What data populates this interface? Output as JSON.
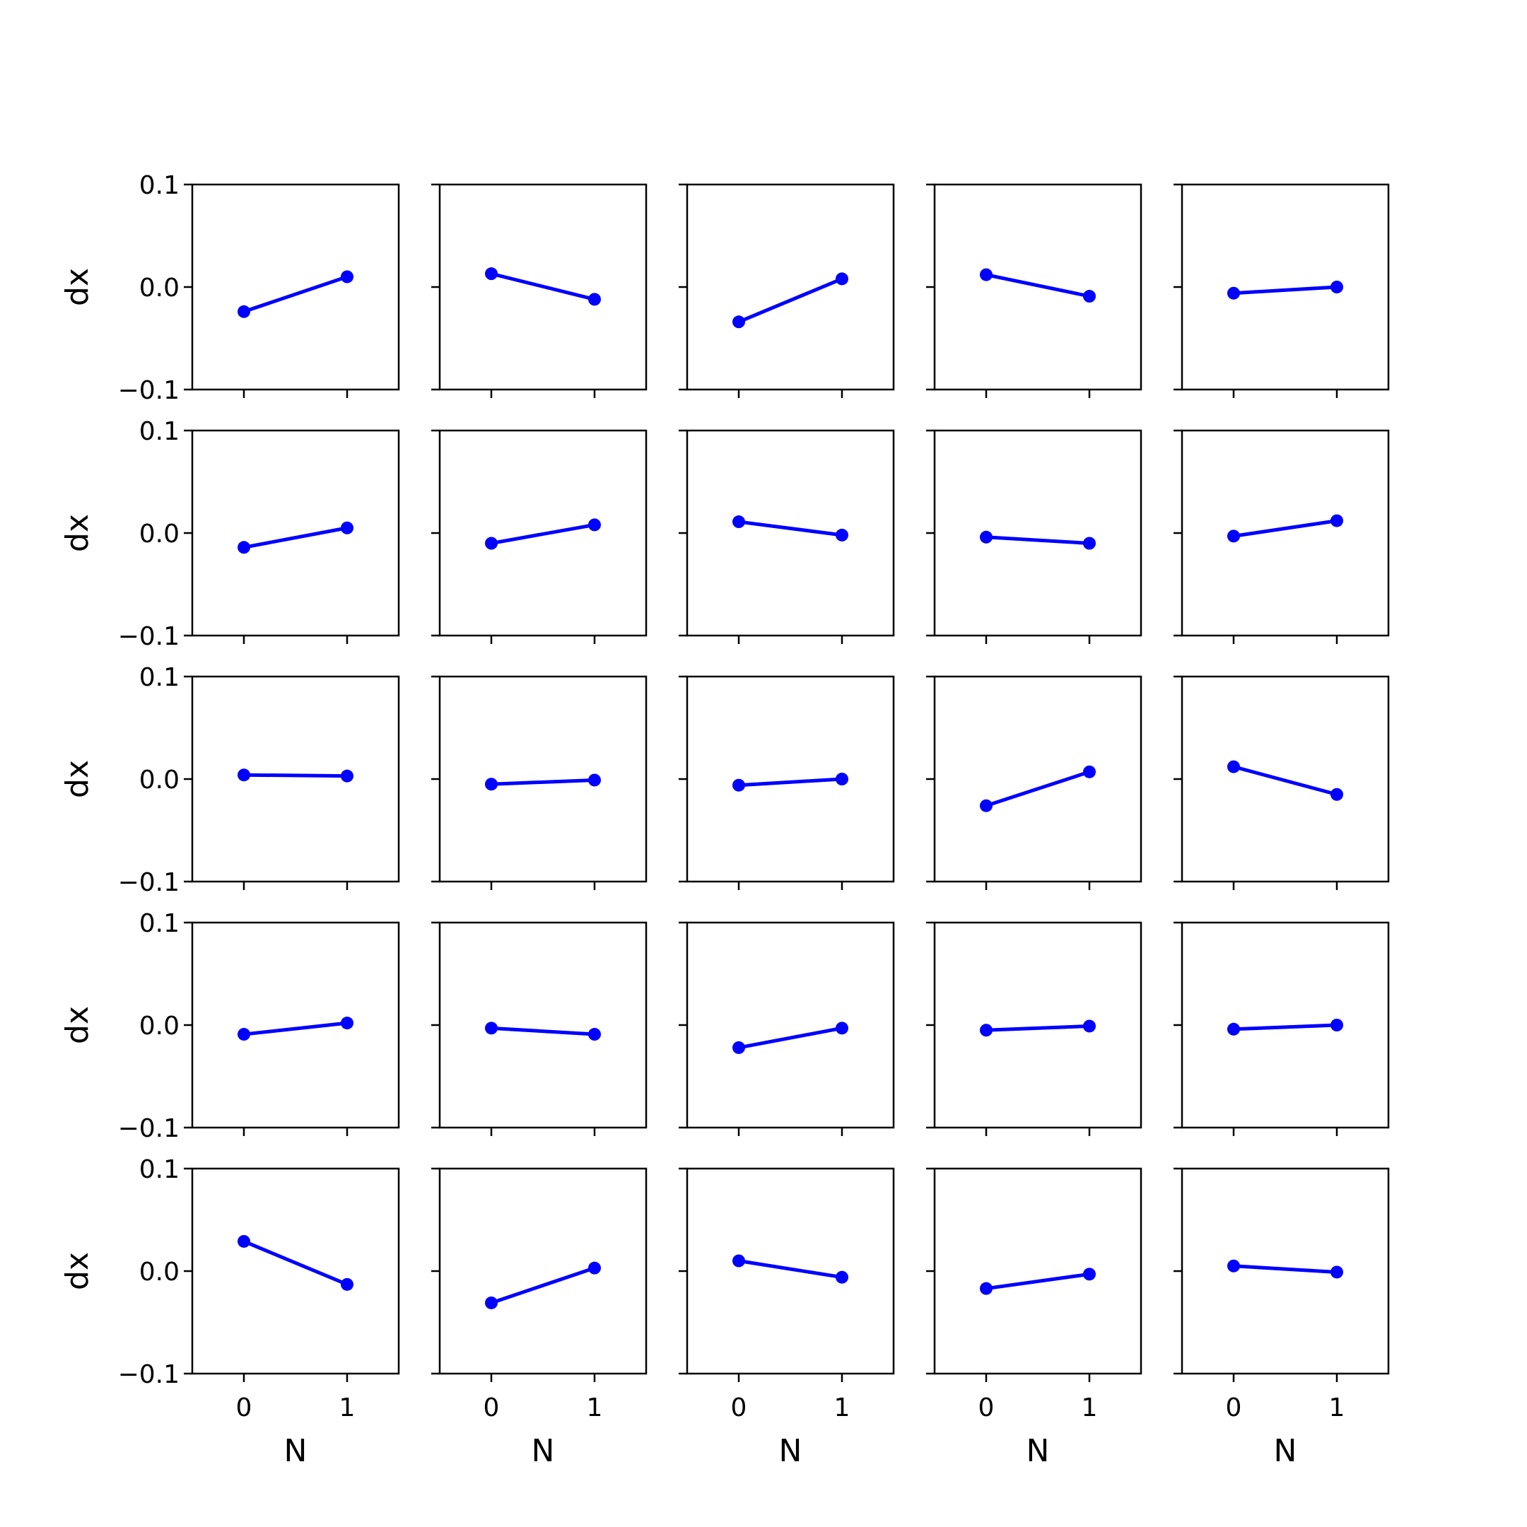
{
  "chart_data": {
    "type": "line",
    "layout": "5x5 grid of small multiples, shared axes",
    "xlabel": "N",
    "ylabel": "dx",
    "x": [
      0,
      1
    ],
    "xticks": [
      "0",
      "1"
    ],
    "xlim": [
      -0.5,
      1.5
    ],
    "ylim": [
      -0.1,
      0.1
    ],
    "yticks": [
      "0.1",
      "0.0",
      "−0.1"
    ],
    "grid": false,
    "color": "#0000ff",
    "marker": "circle",
    "panels": [
      [
        [
          -0.024,
          0.01
        ],
        [
          0.013,
          -0.012
        ],
        [
          -0.034,
          0.008
        ],
        [
          0.012,
          -0.009
        ],
        [
          -0.006,
          0.0
        ]
      ],
      [
        [
          -0.014,
          0.005
        ],
        [
          -0.01,
          0.008
        ],
        [
          0.011,
          -0.002
        ],
        [
          -0.004,
          -0.01
        ],
        [
          -0.003,
          0.012
        ]
      ],
      [
        [
          0.004,
          0.003
        ],
        [
          -0.005,
          -0.001
        ],
        [
          -0.006,
          0.0
        ],
        [
          -0.026,
          0.007
        ],
        [
          0.012,
          -0.015
        ]
      ],
      [
        [
          -0.009,
          0.002
        ],
        [
          -0.003,
          -0.009
        ],
        [
          -0.022,
          -0.003
        ],
        [
          -0.005,
          -0.001
        ],
        [
          -0.004,
          0.0
        ]
      ],
      [
        [
          0.029,
          -0.013
        ],
        [
          -0.031,
          0.003
        ],
        [
          0.01,
          -0.006
        ],
        [
          -0.017,
          -0.003
        ],
        [
          0.005,
          -0.001
        ]
      ]
    ]
  }
}
